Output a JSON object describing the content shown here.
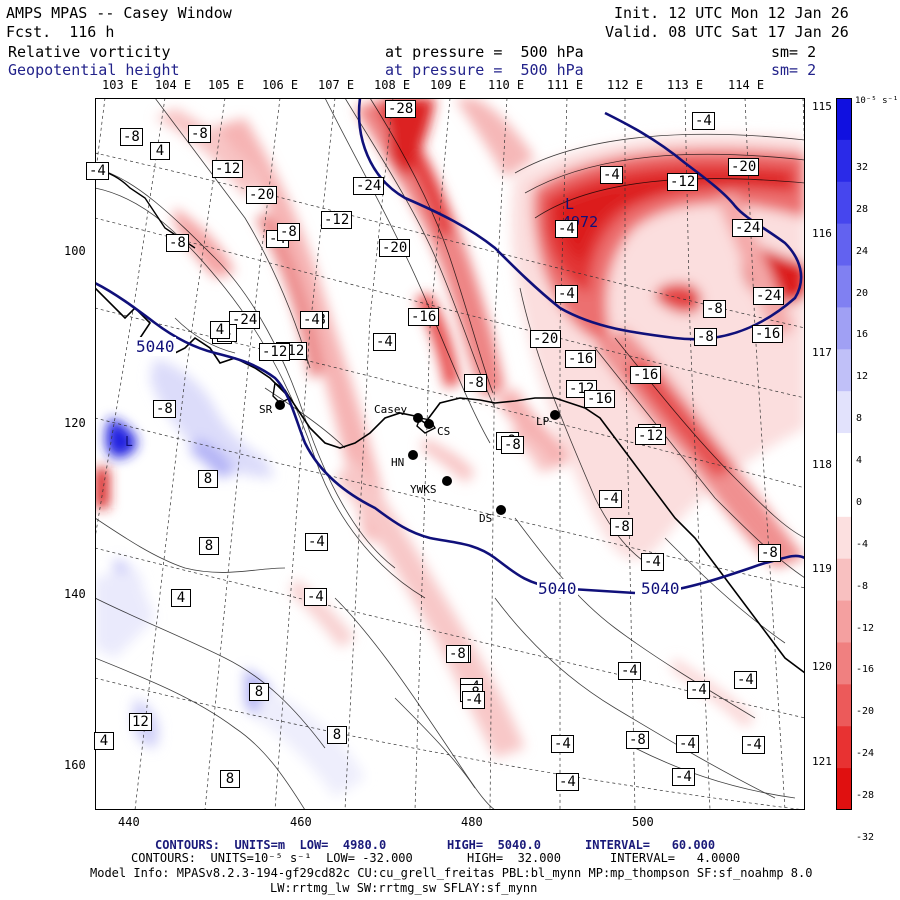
{
  "header": {
    "title": "AMPS MPAS -- Casey Window",
    "forecast": "Fcst.  116 h",
    "init": "Init. 12 UTC Mon 12 Jan 26",
    "valid": "Valid. 08 UTC Sat 17 Jan 26",
    "field1": {
      "name": "Relative vorticity",
      "level": "at pressure =  500 hPa",
      "smooth": "sm= 2"
    },
    "field2": {
      "name": "Geopotential height",
      "level": "at pressure =  500 hPa",
      "smooth": "sm= 2"
    }
  },
  "axes": {
    "top_lon_labels": [
      "103 E",
      "104 E",
      "105 E",
      "106 E",
      "107 E",
      "108 E",
      "109 E",
      "110 E",
      "111 E",
      "112 E",
      "113 E",
      "114 E"
    ],
    "right_lon_labels": [
      "115 E",
      "116 E",
      "117 E",
      "118 E",
      "119 E",
      "120 E",
      "121 E"
    ],
    "x_ticks": [
      "440",
      "460",
      "480",
      "500"
    ],
    "y_ticks": [
      "100",
      "120",
      "140",
      "160"
    ]
  },
  "colorbar": {
    "unit": "10⁻⁵ s⁻¹",
    "ticks": [
      "32",
      "28",
      "24",
      "20",
      "16",
      "12",
      "8",
      "4",
      "0",
      "-4",
      "-8",
      "-12",
      "-16",
      "-20",
      "-24",
      "-28",
      "-32"
    ],
    "colors": [
      "#1010e0",
      "#2a2ae8",
      "#4646ee",
      "#6262f0",
      "#8080f2",
      "#a0a0f4",
      "#c0c0f8",
      "#e2e2fc",
      "#ffffff",
      "#ffffff",
      "#fce0e0",
      "#f8c0c0",
      "#f4a0a0",
      "#f08080",
      "#ec5a5a",
      "#e83232",
      "#e01010"
    ]
  },
  "stations": [
    {
      "name": "Casey"
    },
    {
      "name": "CS"
    },
    {
      "name": "SR"
    },
    {
      "name": "HN"
    },
    {
      "name": "YWKS"
    },
    {
      "name": "DS"
    },
    {
      "name": "LP"
    }
  ],
  "height_labels": [
    "5040",
    "4972",
    "5040",
    "5040"
  ],
  "extremum_labels": [
    "L",
    "L"
  ],
  "vort_labels": [
    "-28",
    "-24",
    "-24",
    "-20",
    "-20",
    "-12",
    "-12",
    "-12",
    "-8",
    "-8",
    "-8",
    "-4",
    "-4",
    "4",
    "4",
    "-16",
    "-16",
    "-16",
    "-16",
    "-12",
    "-8",
    "-8",
    "-8",
    "-8",
    "-4",
    "-4",
    "-4",
    "-4",
    "-24",
    "-12",
    "-20",
    "-16",
    "-24",
    "-20",
    "-16",
    "-8",
    "-4",
    "4",
    "-8",
    "-8",
    "-8",
    "-12",
    "-8",
    "-4",
    "-4",
    "-4",
    "-4",
    "-4",
    "-4",
    "-4",
    "-4",
    "-8",
    "-8",
    "-4",
    "-8",
    "-8",
    "-12",
    "12",
    "4",
    "8",
    "8",
    "4",
    "8",
    "8",
    "8",
    "4",
    "-8",
    "-4",
    "-4",
    "-8",
    "-4",
    "-4",
    "-4",
    "-4"
  ],
  "footer": {
    "line1_a": "CONTOURS:  UNITS=m  LOW=  4980.0",
    "line1_b": "HIGH=  5040.0",
    "line1_c": "INTERVAL=   60.000",
    "line2_a": "CONTOURS:  UNITS=10⁻⁵ s⁻¹  LOW= -32.000",
    "line2_b": "HIGH=  32.000",
    "line2_c": "INTERVAL=   4.0000",
    "model_info": "Model Info: MPASv8.2.3-194-gf29cd82c CU:cu_grell_freitas PBL:bl_mynn MP:mp_thompson SF:sf_noahmp 8.0",
    "model_info2": "LW:rrtmg_lw SW:rrtmg_sw SFLAY:sf_mynn"
  },
  "colors": {
    "height_contour": "#10107a",
    "coast": "#000000",
    "neg": "#e01010",
    "pos": "#1010e0"
  }
}
